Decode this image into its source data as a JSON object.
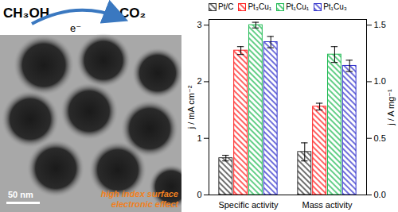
{
  "scheme": {
    "reactant": "CH₃OH",
    "product": "CO₂",
    "electron": "e⁻",
    "scale_bar": "50 nm",
    "caption": [
      "high index surface",
      "electronic effect"
    ]
  },
  "chart_data": {
    "type": "bar",
    "categories": [
      "Specific activity",
      "Mass activity"
    ],
    "ylabel": "j / mA cm⁻²",
    "y2label": "j / A mg⁻¹",
    "ylim": [
      0,
      3.1
    ],
    "yticks": [
      0,
      1,
      2,
      3
    ],
    "y2lim": [
      0,
      1.55
    ],
    "y2ticks": [
      {
        "value": 0,
        "label": "0.0"
      },
      0.5,
      {
        "value": 1,
        "label": "1.0"
      },
      1.5
    ],
    "legend": "top",
    "series": [
      {
        "name": "Pt/C",
        "color": "#333333",
        "axis": [
          "y",
          "y2"
        ],
        "values": [
          0.65,
          0.38
        ],
        "errors": [
          0.05,
          0.08
        ]
      },
      {
        "name": "Pt₃Cu₁",
        "color": "#ff2020",
        "axis": [
          "y",
          "y2"
        ],
        "values": [
          2.55,
          0.78
        ],
        "errors": [
          0.07,
          0.03
        ]
      },
      {
        "name": "Pt₁Cu₁",
        "color": "#22bb55",
        "axis": [
          "y",
          "y2"
        ],
        "values": [
          3.0,
          1.24
        ],
        "errors": [
          0.05,
          0.07
        ]
      },
      {
        "name": "Pt₁Cu₃",
        "color": "#3333cc",
        "axis": [
          "y",
          "y2"
        ],
        "values": [
          2.7,
          1.14
        ],
        "errors": [
          0.1,
          0.05
        ]
      }
    ]
  }
}
